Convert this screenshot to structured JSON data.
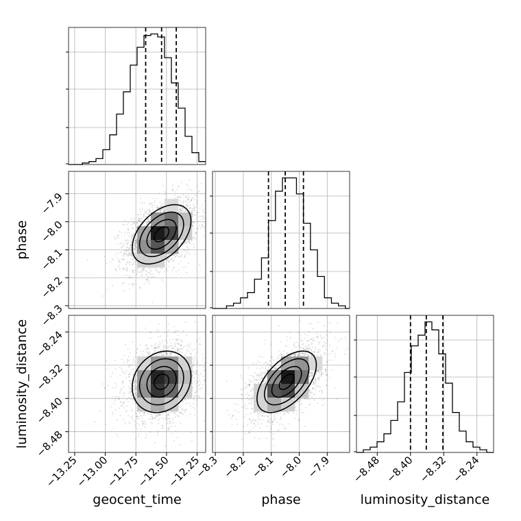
{
  "chart_data": {
    "type": "corner",
    "parameters": [
      "geocent_time",
      "phase",
      "luminosity_distance"
    ],
    "grid": true,
    "ranges": {
      "geocent_time": [
        -13.3,
        -12.18
      ],
      "phase": [
        -8.31,
        -7.82
      ],
      "luminosity_distance": [
        -8.53,
        -8.2
      ]
    },
    "ticks": {
      "geocent_time": [
        "−13.25",
        "−13.00",
        "−12.75",
        "−12.50",
        "−12.25"
      ],
      "phase": [
        "−8.3",
        "−8.2",
        "−8.1",
        "−8.0",
        "−7.9"
      ],
      "luminosity_distance": [
        "−8.48",
        "−8.40",
        "−8.32",
        "−8.24"
      ]
    },
    "tick_values": {
      "geocent_time": [
        -13.25,
        -13.0,
        -12.75,
        -12.5,
        -12.25
      ],
      "phase": [
        -8.3,
        -8.2,
        -8.1,
        -8.0,
        -7.9
      ],
      "luminosity_distance": [
        -8.48,
        -8.4,
        -8.32,
        -8.24
      ]
    },
    "marginals": {
      "geocent_time": {
        "bin_edges": [
          -13.3,
          -13.244,
          -13.188,
          -13.132,
          -13.076,
          -13.02,
          -12.964,
          -12.908,
          -12.852,
          -12.796,
          -12.74,
          -12.684,
          -12.628,
          -12.572,
          -12.516,
          -12.46,
          -12.404,
          -12.348,
          -12.292,
          -12.236,
          -12.18
        ],
        "counts": [
          0,
          0,
          1,
          2,
          4,
          10,
          20,
          34,
          49,
          67,
          79,
          87,
          88,
          86,
          72,
          55,
          38,
          19,
          8,
          2
        ],
        "quantiles": [
          -12.67,
          -12.54,
          -12.42
        ]
      },
      "phase": {
        "bin_edges": [
          -8.31,
          -8.285,
          -8.26,
          -8.235,
          -8.21,
          -8.185,
          -8.16,
          -8.135,
          -8.11,
          -8.085,
          -8.06,
          -8.035,
          -8.01,
          -7.985,
          -7.96,
          -7.935,
          -7.91,
          -7.885,
          -7.86,
          -7.835,
          -7.82
        ],
        "counts": [
          0,
          0,
          1,
          2,
          4,
          6,
          11,
          19,
          33,
          44,
          49,
          49,
          43,
          32,
          22,
          12,
          4,
          2,
          1,
          0
        ],
        "quantiles": [
          -8.11,
          -8.05,
          -7.985
        ]
      },
      "luminosity_distance": {
        "bin_edges": [
          -8.53,
          -8.5135,
          -8.497,
          -8.4805,
          -8.464,
          -8.4475,
          -8.431,
          -8.4145,
          -8.398,
          -8.3815,
          -8.365,
          -8.3485,
          -8.332,
          -8.3155,
          -8.299,
          -8.2825,
          -8.266,
          -8.2495,
          -8.233,
          -8.2165,
          -8.2
        ],
        "counts": [
          0,
          1,
          2,
          4,
          7,
          12,
          19,
          30,
          40,
          44,
          49,
          46,
          37,
          26,
          15,
          8,
          4,
          2,
          1,
          0
        ],
        "quantiles": [
          -8.4,
          -8.362,
          -8.322
        ]
      }
    },
    "joint": [
      {
        "x": "geocent_time",
        "y": "phase",
        "mean": [
          -12.54,
          -8.045
        ],
        "sd": [
          0.12,
          0.053
        ],
        "rho": 0.45
      },
      {
        "x": "geocent_time",
        "y": "luminosity_distance",
        "mean": [
          -12.54,
          -8.36
        ],
        "sd": [
          0.12,
          0.037
        ],
        "rho": 0.18
      },
      {
        "x": "phase",
        "y": "luminosity_distance",
        "mean": [
          -8.045,
          -8.36
        ],
        "sd": [
          0.053,
          0.037
        ],
        "rho": 0.55
      }
    ],
    "contour_sigma_levels": [
      0.5,
      1.0,
      1.5,
      2.0
    ]
  }
}
